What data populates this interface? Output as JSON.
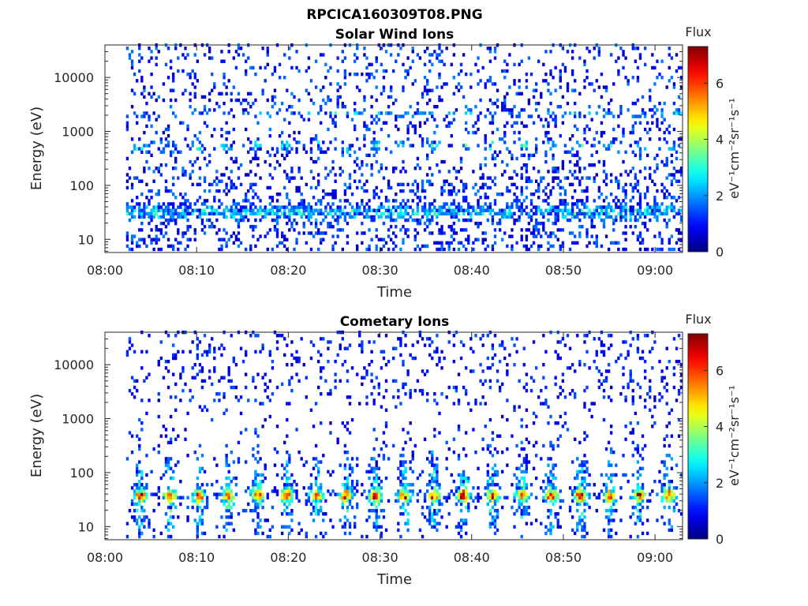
{
  "figure": {
    "title": "RPCICA160309T08.PNG"
  },
  "chart_data": [
    {
      "type": "heatmap",
      "title": "Solar Wind Ions",
      "xlabel": "Time",
      "ylabel": "Energy (eV)",
      "x_ticks": [
        "08:00",
        "08:10",
        "08:20",
        "08:30",
        "08:40",
        "08:50",
        "09:00"
      ],
      "x_tick_minutes": [
        0,
        10,
        20,
        30,
        40,
        50,
        60
      ],
      "xlim_minutes": [
        0,
        63
      ],
      "y_ticks": [
        "10",
        "100",
        "1000",
        "10000"
      ],
      "y_tick_values": [
        10,
        100,
        1000,
        10000
      ],
      "ylim": [
        5.7,
        40000
      ],
      "y_scale": "log",
      "data_start_minute": 2.3,
      "colorbar": {
        "label": "Flux",
        "unit": "eV⁻¹cm⁻²sr⁻¹s⁻¹",
        "ticks": [
          "0",
          "2",
          "4",
          "6"
        ],
        "tick_values": [
          0,
          2,
          4,
          6
        ],
        "range": [
          0,
          7.3
        ]
      },
      "features": [
        {
          "energy_eV": 30,
          "flux": 3.6,
          "note": ""
        },
        {
          "energy_eV": 500,
          "flux": 3.8,
          "note": ""
        },
        {
          "energy_eV": 2000,
          "flux": 2.8,
          "note": ""
        }
      ],
      "pulse_period_minutes": 3.2
    },
    {
      "type": "heatmap",
      "title": "Cometary Ions",
      "xlabel": "Time",
      "ylabel": "Energy (eV)",
      "x_ticks": [
        "08:00",
        "08:10",
        "08:20",
        "08:30",
        "08:40",
        "08:50",
        "09:00"
      ],
      "x_tick_minutes": [
        0,
        10,
        20,
        30,
        40,
        50,
        60
      ],
      "xlim_minutes": [
        0,
        63
      ],
      "y_ticks": [
        "10",
        "100",
        "1000",
        "10000"
      ],
      "y_tick_values": [
        10,
        100,
        1000,
        10000
      ],
      "ylim": [
        5.7,
        40000
      ],
      "y_scale": "log",
      "data_start_minute": 2.3,
      "colorbar": {
        "label": "Flux",
        "unit": "eV⁻¹cm⁻²sr⁻¹s⁻¹",
        "ticks": [
          "0",
          "2",
          "4",
          "6"
        ],
        "tick_values": [
          0,
          2,
          4,
          6
        ],
        "range": [
          0,
          7.3
        ]
      },
      "features": [
        {
          "energy_eV": 35,
          "flux": 6.2,
          "note": ""
        },
        {
          "energy_eV": 150,
          "flux": 4.5,
          "note": ""
        }
      ],
      "pulse_period_minutes": 3.2
    }
  ]
}
